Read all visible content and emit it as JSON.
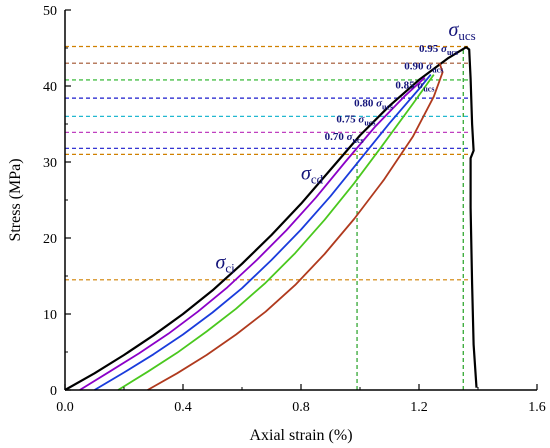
{
  "chart_data": {
    "type": "line",
    "xlabel": "Axial strain (%)",
    "ylabel": "Stress (MPa)",
    "xlim": [
      0.0,
      1.6
    ],
    "ylim": [
      0,
      50
    ],
    "xticks": [
      "0.0",
      "0.4",
      "0.8",
      "1.2",
      "1.6"
    ],
    "yticks": [
      "0",
      "10",
      "20",
      "30",
      "40",
      "50"
    ],
    "grid": false,
    "series": [
      {
        "color": "#000000",
        "points": [
          [
            0.0,
            0
          ],
          [
            0.1,
            2.2
          ],
          [
            0.2,
            4.6
          ],
          [
            0.3,
            7.2
          ],
          [
            0.4,
            10.0
          ],
          [
            0.5,
            13.1
          ],
          [
            0.6,
            16.6
          ],
          [
            0.7,
            20.4
          ],
          [
            0.8,
            24.5
          ],
          [
            0.9,
            29.0
          ],
          [
            1.0,
            33.5
          ],
          [
            1.1,
            37.4
          ],
          [
            1.2,
            40.8
          ],
          [
            1.3,
            43.7
          ],
          [
            1.36,
            45.1
          ],
          [
            1.37,
            44.8
          ],
          [
            1.375,
            41
          ],
          [
            1.38,
            35
          ],
          [
            1.385,
            31.5
          ],
          [
            1.375,
            30.5
          ],
          [
            1.375,
            24
          ],
          [
            1.38,
            14
          ],
          [
            1.385,
            6
          ],
          [
            1.395,
            0.3
          ]
        ]
      },
      {
        "color": "#8b00c8",
        "points": [
          [
            0.05,
            0
          ],
          [
            0.15,
            2.4
          ],
          [
            0.25,
            4.8
          ],
          [
            0.35,
            7.4
          ],
          [
            0.45,
            10.3
          ],
          [
            0.55,
            13.5
          ],
          [
            0.65,
            17.1
          ],
          [
            0.75,
            21.0
          ],
          [
            0.85,
            25.3
          ],
          [
            0.95,
            30.0
          ],
          [
            1.05,
            34.6
          ],
          [
            1.15,
            38.6
          ],
          [
            1.22,
            41.1
          ]
        ]
      },
      {
        "color": "#1a3cdc",
        "points": [
          [
            0.1,
            0
          ],
          [
            0.2,
            2.3
          ],
          [
            0.3,
            4.7
          ],
          [
            0.4,
            7.3
          ],
          [
            0.5,
            10.2
          ],
          [
            0.6,
            13.4
          ],
          [
            0.7,
            17.1
          ],
          [
            0.8,
            21.1
          ],
          [
            0.9,
            25.5
          ],
          [
            1.0,
            30.3
          ],
          [
            1.1,
            35.1
          ],
          [
            1.2,
            39.6
          ],
          [
            1.24,
            41.5
          ]
        ]
      },
      {
        "color": "#4ac81e",
        "points": [
          [
            0.18,
            0
          ],
          [
            0.28,
            2.4
          ],
          [
            0.38,
            4.9
          ],
          [
            0.48,
            7.7
          ],
          [
            0.58,
            10.7
          ],
          [
            0.68,
            14.1
          ],
          [
            0.78,
            18.0
          ],
          [
            0.88,
            22.4
          ],
          [
            0.98,
            27.2
          ],
          [
            1.08,
            32.4
          ],
          [
            1.18,
            37.7
          ],
          [
            1.25,
            41.5
          ]
        ]
      },
      {
        "color": "#b03a1e",
        "points": [
          [
            0.28,
            0
          ],
          [
            0.38,
            2.2
          ],
          [
            0.48,
            4.6
          ],
          [
            0.58,
            7.3
          ],
          [
            0.68,
            10.3
          ],
          [
            0.78,
            13.8
          ],
          [
            0.88,
            17.9
          ],
          [
            0.98,
            22.5
          ],
          [
            1.08,
            27.6
          ],
          [
            1.18,
            33.4
          ],
          [
            1.25,
            38.6
          ],
          [
            1.28,
            41.8
          ],
          [
            1.27,
            43.0
          ]
        ]
      }
    ],
    "reference_lines": [
      {
        "axis": "y",
        "value": 45.2,
        "color": "#d08000"
      },
      {
        "axis": "y",
        "value": 43.0,
        "color": "#a0522d"
      },
      {
        "axis": "y",
        "value": 40.8,
        "color": "#22b022"
      },
      {
        "axis": "y",
        "value": 38.4,
        "color": "#1a1acc"
      },
      {
        "axis": "y",
        "value": 36.0,
        "color": "#22b8d0"
      },
      {
        "axis": "y",
        "value": 33.9,
        "color": "#c040c0"
      },
      {
        "axis": "y",
        "value": 31.8,
        "color": "#1a1acc"
      },
      {
        "axis": "y",
        "value": 31.0,
        "color": "#d08000"
      },
      {
        "axis": "y",
        "value": 14.5,
        "color": "#d08000"
      },
      {
        "axis": "x",
        "value": 0.99,
        "color": "#22a022"
      },
      {
        "axis": "x",
        "value": 1.35,
        "color": "#22a022"
      }
    ],
    "annotations": [
      {
        "id": "ucs",
        "symbol": "σ",
        "sub": "ucs",
        "x": 1.3,
        "y": 46.6,
        "size": "large"
      },
      {
        "id": "p95",
        "coef": "0.95",
        "symbol": "σ",
        "sub": "ucs",
        "x": 1.2,
        "y": 44.5
      },
      {
        "id": "p90",
        "coef": "0.90",
        "symbol": "σ",
        "sub": "ucs",
        "x": 1.15,
        "y": 42.2
      },
      {
        "id": "p85",
        "coef": "0.85",
        "symbol": "σ",
        "sub": "ucs",
        "x": 1.12,
        "y": 39.7
      },
      {
        "id": "p80",
        "coef": "0.80",
        "symbol": "σ",
        "sub": "ucs",
        "x": 0.98,
        "y": 37.3
      },
      {
        "id": "p75",
        "coef": "0.75",
        "symbol": "σ",
        "sub": "ucs",
        "x": 0.92,
        "y": 35.2
      },
      {
        "id": "p70",
        "coef": "0.70",
        "symbol": "σ",
        "sub": "ucs",
        "x": 0.88,
        "y": 32.9
      },
      {
        "id": "cd",
        "symbol": "σ",
        "sub": "cd",
        "x": 0.8,
        "y": 27.7,
        "size": "large"
      },
      {
        "id": "ci",
        "symbol": "σ",
        "sub": "ci",
        "x": 0.51,
        "y": 16.0,
        "size": "large"
      }
    ]
  }
}
